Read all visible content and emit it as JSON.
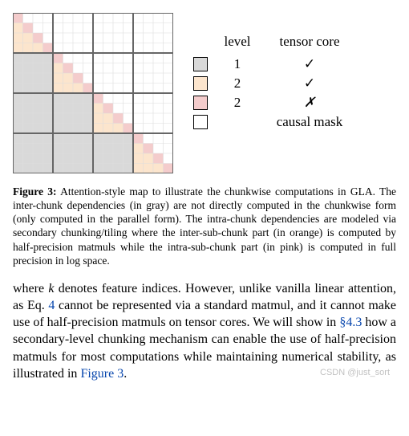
{
  "diagram": {
    "size": 200,
    "macro": 4,
    "sub": 4,
    "colors": {
      "gray": "#d9d9d9",
      "orange": "#fce5cd",
      "pink": "#f4cccc",
      "empty": "#ffffff",
      "macro_line": "#666666",
      "minor_line": "#dddddd",
      "macro_line_width": 2,
      "minor_line_width": 0.6
    }
  },
  "legend": {
    "header": {
      "level": "level",
      "core": "tensor core"
    },
    "rows": [
      {
        "color": "#d9d9d9",
        "level": "1",
        "core": "✓"
      },
      {
        "color": "#fce5cd",
        "level": "2",
        "core": "✓"
      },
      {
        "color": "#f4cccc",
        "level": "2",
        "core": "✗"
      },
      {
        "color": "#ffffff",
        "level": "",
        "core": "causal mask"
      }
    ]
  },
  "caption": {
    "label": "Figure 3:",
    "text": "Attention-style map to illustrate the chunkwise computations in GLA. The inter-chunk dependencies (in gray) are not directly computed in the chunkwise form (only computed in the parallel form). The intra-chunk dependencies are modeled via secondary chunking/tiling where the inter-sub-chunk part (in orange) is computed by half-precision matmuls while the intra-sub-chunk part (in pink) is computed in full precision in log space."
  },
  "body": {
    "pre": "where ",
    "k": "k",
    "post_k": " denotes feature indices. However, unlike vanilla linear attention, as Eq. ",
    "eqref": "4",
    "post_eq": " cannot be represented via a standard matmul, and it cannot make use of half-precision matmuls on tensor cores. We will show in ",
    "secref": "§4.3",
    "post_sec": " how a secondary-level chunking mechanism can enable the use of half-precision matmuls for most computations while maintaining numerical stability, as illustrated in ",
    "figref": "Figure 3",
    "tail": "."
  },
  "watermark": "CSDN @just_sort"
}
